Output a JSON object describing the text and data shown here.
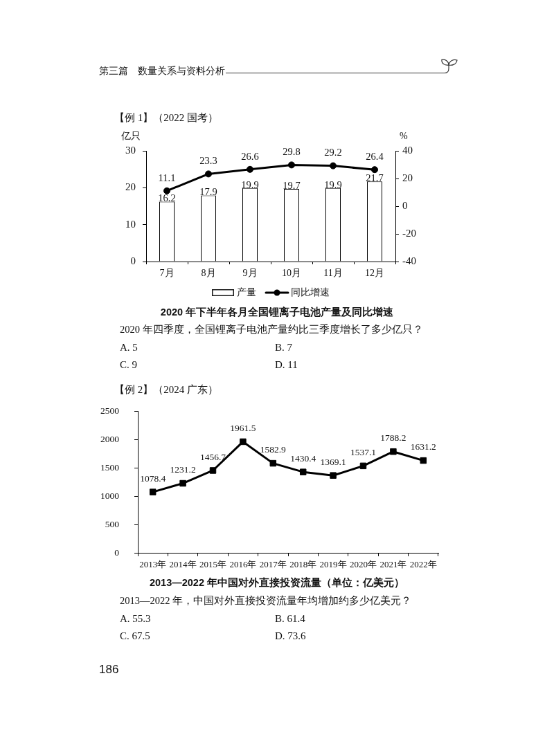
{
  "chart_data": [
    {
      "type": "bar",
      "title": "2020 年下半年各月全国锂离子电池产量及同比增速",
      "ylabel": "亿只",
      "y2label": "%",
      "categories": [
        "7月",
        "8月",
        "9月",
        "10月",
        "11月",
        "12月"
      ],
      "series": [
        {
          "name": "产量",
          "type": "bar",
          "color": "#ffffff",
          "values": [
            16.2,
            17.9,
            19.9,
            19.7,
            19.9,
            21.7
          ]
        },
        {
          "name": "同比增速",
          "type": "line",
          "axis": "y2",
          "color": "#000000",
          "values": [
            11.1,
            23.3,
            26.6,
            29.8,
            29.2,
            26.4
          ]
        }
      ],
      "ylim": [
        0,
        30
      ],
      "yticks": [
        0,
        10,
        20,
        30
      ],
      "y2lim": [
        -40,
        40
      ],
      "y2ticks": [
        -40,
        -20,
        0,
        20,
        40
      ],
      "data_labels": true,
      "legend": "bottom",
      "marker": "circle",
      "annotations": [
        "第三篇　数量关系与资料分析",
        "【例 1】（2022 国考）",
        "2020 年四季度，全国锂离子电池产量约比三季度增长了多少亿只？",
        "A. 5",
        "B. 7",
        "C. 9",
        "D. 11"
      ]
    },
    {
      "type": "line",
      "title": "2013—2022 年中国对外直接投资流量（单位：亿美元）",
      "categories": [
        "2013年",
        "2014年",
        "2015年",
        "2016年",
        "2017年",
        "2018年",
        "2019年",
        "2020年",
        "2021年",
        "2022年"
      ],
      "series": [
        {
          "color": "#000000",
          "values": [
            1078.4,
            1231.2,
            1456.7,
            1961.5,
            1582.9,
            1430.4,
            1369.1,
            1537.1,
            1788.2,
            1631.2
          ]
        }
      ],
      "ylim": [
        0,
        2500
      ],
      "yticks": [
        0,
        500,
        1000,
        1500,
        2000,
        2500
      ],
      "data_labels": true,
      "marker": "square",
      "annotations": [
        "【例 2】（2024 广东）",
        "2013—2022 年，中国对外直接投资流量年均增加约多少亿美元？",
        "A. 55.3",
        "B. 61.4",
        "C. 67.5",
        "D. 73.6",
        "186"
      ]
    }
  ]
}
